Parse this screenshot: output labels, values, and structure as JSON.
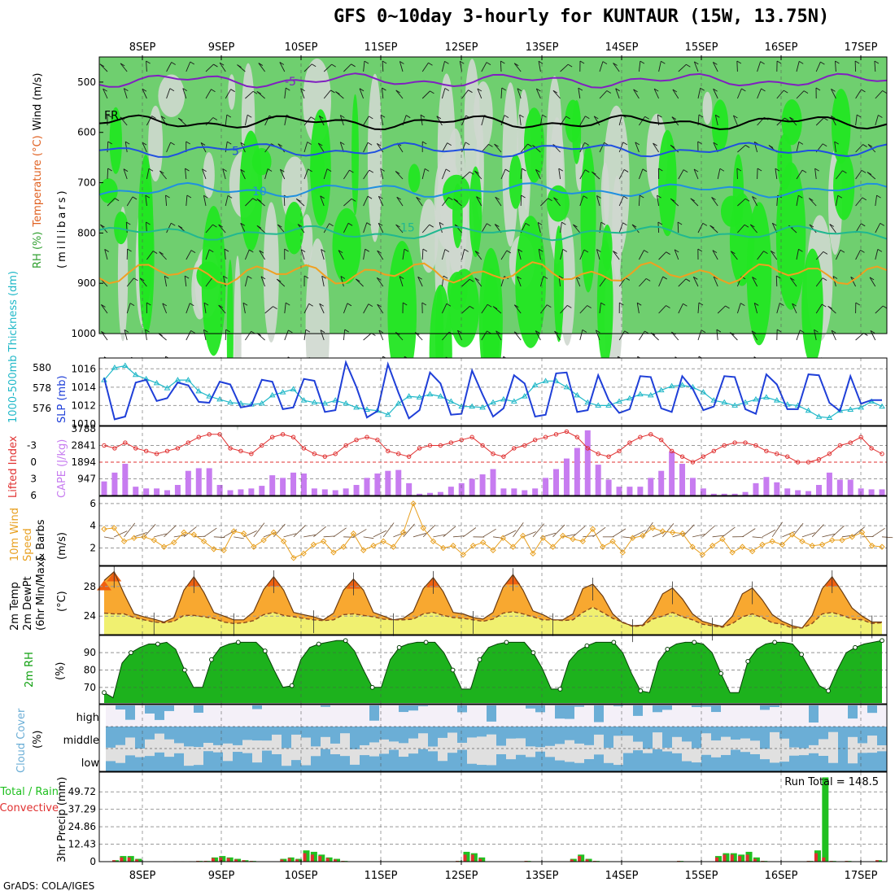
{
  "title": "GFS 0~10day 3-hourly for KUNTAUR (15W, 13.75N)",
  "credit": "GrADS: COLA/IGES",
  "colors": {
    "rh_light": "#cfd8cf",
    "rh_mid": "#6fcf6f",
    "rh_bright": "#22e622",
    "rh_dark": "#2f9f2f",
    "cape": "#c77cf0",
    "lifted": "#e03030",
    "slp": "#1f3fd8",
    "thickness": "#20b8c8",
    "wind10": "#e8a020",
    "temp_max": "#f06010",
    "temp_fill": "#f8a830",
    "temp_low": "#f0f070",
    "dewpt": "#8a4a20",
    "rh2m": "#10a010",
    "cloud": "#6baed6",
    "cloud_bg": "#e0e0e0",
    "precip_total": "#20c020",
    "precip_conv": "#e03030"
  },
  "chart_data": [
    {
      "type": "heatmap",
      "panel": "upper-air",
      "dates": [
        "8SEP",
        "9SEP",
        "10SEP",
        "11SEP",
        "12SEP",
        "13SEP",
        "14SEP",
        "15SEP",
        "16SEP",
        "17SEP"
      ],
      "ylabel_parts": [
        "RH (%)",
        "Temperature (°C)",
        "Wind (m/s)"
      ],
      "ylabel_unit": "(millibars)",
      "yticks": [
        "500",
        "600",
        "700",
        "800",
        "900",
        "1000"
      ],
      "pressure_levels": [
        500,
        600,
        700,
        800,
        900,
        1000
      ],
      "ylim": [
        450,
        1000
      ],
      "isotherm_labels": [
        "-5",
        "FR",
        "5",
        "10",
        "15"
      ],
      "isotherms": [
        {
          "label": "-5",
          "color": "#8020c0",
          "p": 497
        },
        {
          "label": "FR",
          "color": "#000000",
          "p": 580
        },
        {
          "label": "5",
          "color": "#2050e0",
          "p": 635
        },
        {
          "label": "10",
          "color": "#2090e0",
          "p": 715
        },
        {
          "label": "15",
          "color": "#20b890",
          "p": 800
        }
      ]
    },
    {
      "type": "line",
      "panel": "slp-thickness",
      "ylabel_left": "1000-500mb Thickness (dm)",
      "ylabel_right": "SLP (mb)",
      "yticks_left": [
        "580",
        "578",
        "576"
      ],
      "yticks_right": [
        "1016",
        "1014",
        "1012",
        "1010"
      ],
      "ylim_slp": [
        1010,
        1017
      ],
      "ylim_thk": [
        574.5,
        580.8
      ],
      "series": [
        {
          "name": "SLP",
          "values": [
            1015,
            1010.5,
            1010.8,
            1014.5,
            1014.8,
            1012.5,
            1012.8,
            1014.5,
            1014.2,
            1012.4,
            1012.3,
            1014.6,
            1014.3,
            1011.8,
            1012,
            1014.8,
            1014.6,
            1011.6,
            1011.8,
            1014.9,
            1014.7,
            1011.3,
            1011.5,
            1016.7,
            1014,
            1010.7,
            1011.4,
            1016.5,
            1013.4,
            1010.6,
            1011.5,
            1015.6,
            1014.4,
            1011,
            1011.1,
            1015.8,
            1013.2,
            1010.8,
            1011.7,
            1015.3,
            1014.4,
            1010.8,
            1011,
            1015.5,
            1015.6,
            1011.3,
            1011.5,
            1015.3,
            1012.6,
            1011.2,
            1011.6,
            1015.2,
            1015.1,
            1011.7,
            1011.3,
            1015.2,
            1013.8,
            1011.5,
            1011.9,
            1015.2,
            1015.1,
            1011.6,
            1011.1,
            1015.4,
            1014.3,
            1011.6,
            1011.6,
            1015.4,
            1015.3,
            1012.3,
            1011.4,
            1015.2,
            1012.2,
            1012.6,
            1012.6
          ]
        },
        {
          "name": "Thickness",
          "values": [
            578.8,
            580,
            580.2,
            579.3,
            578.9,
            578.5,
            578,
            578.8,
            578.8,
            577.7,
            577.2,
            576.9,
            576.6,
            576.5,
            576.4,
            576.5,
            577.3,
            577.6,
            577.9,
            576.8,
            576.6,
            576.5,
            576.8,
            576.5,
            576.1,
            575.9,
            575.8,
            575.4,
            576.5,
            577.2,
            577.1,
            577.4,
            577.2,
            576.7,
            576.2,
            576.2,
            576.1,
            576.6,
            576.9,
            576.7,
            577.2,
            578.3,
            578.7,
            578.7,
            578.1,
            577.3,
            576.6,
            576.3,
            576.3,
            576.7,
            577,
            577.4,
            577.3,
            577.8,
            578.2,
            578.3,
            578.1,
            577.6,
            576.8,
            576.6,
            576.3,
            576.6,
            576.9,
            577.1,
            576.8,
            576.4,
            576.3,
            575.8,
            575.2,
            575.1,
            575.8,
            575.9,
            576.1,
            576.7,
            576.2
          ]
        }
      ]
    },
    {
      "type": "bar",
      "panel": "cape-lifted",
      "ylabel_left": "Lifted Index",
      "ylabel_right": "CAPE (J/kg)",
      "yticks_left": [
        "-3",
        "0",
        "3",
        "6"
      ],
      "yticks_right": [
        "2841",
        "1894",
        "947"
      ],
      "cape_top_label": "3788",
      "ylim_cape": [
        0,
        3788
      ],
      "ylim_li": [
        -6,
        6
      ],
      "series": [
        {
          "name": "CAPE",
          "values": [
            800,
            1300,
            1800,
            500,
            400,
            400,
            300,
            600,
            1400,
            1550,
            1550,
            600,
            300,
            350,
            400,
            550,
            1150,
            1000,
            1300,
            1250,
            400,
            350,
            300,
            400,
            600,
            1000,
            1250,
            1400,
            1450,
            700,
            100,
            150,
            200,
            500,
            700,
            950,
            1200,
            1500,
            400,
            400,
            300,
            400,
            1000,
            1500,
            2100,
            2700,
            3700,
            1750,
            900,
            500,
            500,
            500,
            1000,
            1400,
            2500,
            1800,
            1000,
            400,
            100,
            100,
            100,
            200,
            700,
            1050,
            750,
            400,
            300,
            250,
            600,
            1300,
            900,
            900,
            400,
            350,
            350
          ]
        },
        {
          "name": "Lifted Index",
          "values": [
            -3,
            -2.5,
            -3.5,
            -2.5,
            -2,
            -1.5,
            -2,
            -2.5,
            -3.5,
            -4.5,
            -5,
            -5,
            -2.5,
            -2,
            -1.5,
            -3,
            -4.5,
            -5,
            -4.5,
            -2.5,
            -1.5,
            -1,
            -1.5,
            -3,
            -4,
            -4.5,
            -4,
            -2,
            -1.5,
            -1,
            -2.5,
            -3,
            -3,
            -3.5,
            -4,
            -4.5,
            -3,
            -1.5,
            -1,
            -2.5,
            -3,
            -4,
            -4.5,
            -5,
            -5.5,
            -4.5,
            -2.5,
            -1.5,
            -1,
            -2,
            -3.5,
            -4.5,
            -5,
            -4,
            -2,
            -1,
            0,
            -1,
            -2,
            -3,
            -3.5,
            -3.5,
            -3,
            -2,
            -1.5,
            -1,
            0,
            0,
            -0.5,
            -1.5,
            -3,
            -3.5,
            -4.5,
            -2.5,
            -1.5
          ]
        }
      ]
    },
    {
      "type": "line",
      "panel": "wind10",
      "ylabel": "10m Wind Speed & Barbs (m/s)",
      "ylabel_parts": [
        "10m Wind",
        "Speed",
        "& Barbs"
      ],
      "ylabel_unit": "(m/s)",
      "yticks": [
        "6",
        "4",
        "2"
      ],
      "ylim": [
        0.5,
        6.5
      ],
      "series": [
        {
          "name": "10m Wind",
          "values": [
            3.7,
            3.8,
            2.6,
            2.9,
            3,
            2.7,
            2.1,
            2.5,
            3.4,
            3.2,
            2.6,
            1.9,
            1.8,
            3.5,
            3.3,
            2.1,
            2.7,
            3.4,
            2.6,
            1.1,
            1.5,
            2.3,
            2.6,
            1.6,
            2.1,
            3.3,
            1.8,
            2.2,
            2.6,
            2.1,
            3.4,
            6,
            3.8,
            2.6,
            2,
            2.2,
            1.4,
            2.2,
            2.5,
            1.8,
            2.9,
            2.1,
            3.1,
            1.5,
            2.9,
            2.1,
            3.1,
            2.8,
            2.6,
            3.7,
            2.1,
            2.6,
            1.6,
            2.9,
            3.1,
            3.8,
            3.5,
            3.4,
            3.3,
            2.1,
            1.4,
            2.2,
            2.8,
            1.6,
            2.1,
            1.7,
            2.3,
            2.6,
            2.3,
            3.2,
            2.6,
            2.2,
            2.3,
            2.7,
            2.7,
            3,
            3.4,
            2.2,
            2.1
          ]
        }
      ]
    },
    {
      "type": "area",
      "panel": "temp2m",
      "ylabel_parts": [
        "2m Temp",
        "2m DewPt",
        "(6hr Min/Max)"
      ],
      "ylabel_unit": "(°C)",
      "yticks": [
        "28",
        "24"
      ],
      "ylim": [
        21.5,
        30.5
      ],
      "series": [
        {
          "name": "Temp",
          "values": [
            28.8,
            30,
            27,
            24.3,
            23.9,
            23.6,
            23.2,
            23.8,
            27.5,
            29.3,
            27.2,
            24.5,
            24,
            23.5,
            23.5,
            24.6,
            27.6,
            29.3,
            27.5,
            24.5,
            24.2,
            23.9,
            23.5,
            24.4,
            27.5,
            29,
            27.5,
            24.5,
            24,
            23.5,
            23.7,
            24.6,
            27.7,
            29.2,
            27.3,
            24.5,
            24.3,
            23.8,
            23.6,
            24.5,
            27.9,
            29.6,
            27.5,
            24.7,
            24.2,
            23.5,
            23.5,
            24.3,
            27.7,
            28.3,
            26.7,
            24.3,
            23.1,
            22.7,
            22.8,
            24.3,
            27,
            27.8,
            26.3,
            24.3,
            23.3,
            22.9,
            22.6,
            24,
            27,
            27.8,
            26.2,
            24.2,
            23.3,
            22.7,
            22.4,
            24.1,
            27.7,
            29.3,
            27.3,
            25.1,
            24,
            23.2,
            23.2
          ]
        },
        {
          "name": "DewPt",
          "values": [
            24.4,
            24.3,
            24.3,
            23.8,
            23.5,
            23.2,
            23.1,
            23.3,
            24.1,
            24.1,
            23.9,
            23.7,
            23.2,
            23,
            23.1,
            23.4,
            24.2,
            24.5,
            24.1,
            23.9,
            23.7,
            23.5,
            23.4,
            23.5,
            24.2,
            24.3,
            24.1,
            23.9,
            23.6,
            23.5,
            23.5,
            23.6,
            24.3,
            24.5,
            24.1,
            23.8,
            23.7,
            23.5,
            23.3,
            23.6,
            24.4,
            24.6,
            24.3,
            23.9,
            23.5,
            23.5,
            23.4,
            23.5,
            24.5,
            25.2,
            24.5,
            23.7,
            23.2,
            22.6,
            22.7,
            23.6,
            24,
            24.5,
            23.9,
            23.5,
            22.9,
            22.7,
            22.5,
            23,
            23.9,
            24.3,
            23.8,
            23.1,
            22.9,
            22.4,
            22.4,
            23,
            24.3,
            24.5,
            24.1,
            23.6,
            23.5,
            23,
            23.1
          ]
        }
      ]
    },
    {
      "type": "area",
      "panel": "rh2m",
      "ylabel": "2m RH",
      "ylabel_unit": "(%)",
      "yticks": [
        "90",
        "80",
        "70"
      ],
      "ylim": [
        61,
        99
      ],
      "series": [
        {
          "name": "2m RH",
          "values": [
            67,
            64,
            84,
            90,
            93,
            95,
            95,
            96,
            92,
            80,
            70,
            70,
            86,
            93,
            95,
            96,
            96,
            96,
            91,
            80,
            70,
            71,
            86,
            93,
            95,
            96,
            97,
            97,
            91,
            80,
            70,
            70,
            86,
            93,
            95,
            96,
            96,
            96,
            90,
            80,
            69,
            69,
            86,
            93,
            95,
            96,
            96,
            96,
            90,
            81,
            69,
            69,
            85,
            91,
            94,
            96,
            96,
            96,
            90,
            78,
            68,
            67,
            85,
            92,
            95,
            96,
            96,
            95,
            90,
            78,
            67,
            67,
            85,
            92,
            95,
            96,
            96,
            95,
            89,
            80,
            71,
            68,
            80,
            90,
            93,
            95,
            96,
            97
          ]
        }
      ]
    },
    {
      "type": "area",
      "panel": "cloud",
      "ylabel": "Cloud Cover",
      "ylabel_unit": "(%)",
      "rows": [
        "high",
        "middle",
        "low"
      ]
    },
    {
      "type": "bar",
      "panel": "precip",
      "ylabel_left": "Total / Rain",
      "ylabel_left2": "Convective",
      "ylabel_unit": "3hr Precip (mm)",
      "yticks": [
        "49.72",
        "37.29",
        "24.86",
        "12.43",
        "0"
      ],
      "ylim": [
        0,
        62
      ],
      "run_total": "Run Total = 148.5",
      "series": [
        {
          "name": "Total",
          "values": [
            1,
            4,
            4,
            2,
            0,
            0,
            0,
            0,
            0.3,
            0.3,
            0.3,
            0.5,
            0.5,
            3,
            4,
            3,
            2,
            1,
            0.5,
            0,
            0,
            0,
            2,
            3,
            2,
            8,
            7,
            5,
            3,
            2,
            0.5,
            0,
            0,
            0,
            0,
            0,
            0,
            0,
            0,
            0,
            0,
            0,
            0,
            0,
            0,
            0.5,
            7,
            6,
            3,
            0,
            0,
            0,
            0,
            0,
            0.5,
            0,
            0,
            0,
            0,
            0,
            2,
            5,
            2,
            0.5,
            0,
            0,
            0,
            0,
            0,
            0,
            0,
            0,
            0,
            0,
            0.5,
            0,
            0,
            0,
            0,
            4,
            6,
            6,
            5,
            7,
            3,
            0.5,
            0,
            0,
            0,
            0,
            0,
            0.5,
            8,
            60,
            0.5,
            0,
            0.5,
            0,
            0,
            0,
            1
          ]
        },
        {
          "name": "Convective",
          "values": [
            1,
            3,
            3,
            1.5,
            0,
            0,
            0,
            0,
            0.3,
            0.3,
            0.3,
            0.5,
            0.5,
            2.5,
            3,
            2.5,
            1.5,
            1,
            0.5,
            0,
            0,
            0,
            1.5,
            2.5,
            1.5,
            6,
            5,
            4,
            2.5,
            1.5,
            0.5,
            0,
            0,
            0,
            0,
            0,
            0,
            0,
            0,
            0,
            0,
            0,
            0,
            0,
            0,
            0.5,
            5,
            5,
            2,
            0,
            0,
            0,
            0,
            0,
            0.5,
            0,
            0,
            0,
            0,
            0,
            1.5,
            4,
            1.5,
            0.5,
            0,
            0,
            0,
            0,
            0,
            0,
            0,
            0,
            0,
            0,
            0.5,
            0,
            0,
            0,
            0,
            3,
            5,
            5,
            4,
            5,
            2,
            0.5,
            0,
            0,
            0,
            0,
            0,
            0.5,
            6,
            3,
            0.5,
            0,
            0.5,
            0,
            0,
            0,
            1
          ]
        }
      ]
    }
  ]
}
